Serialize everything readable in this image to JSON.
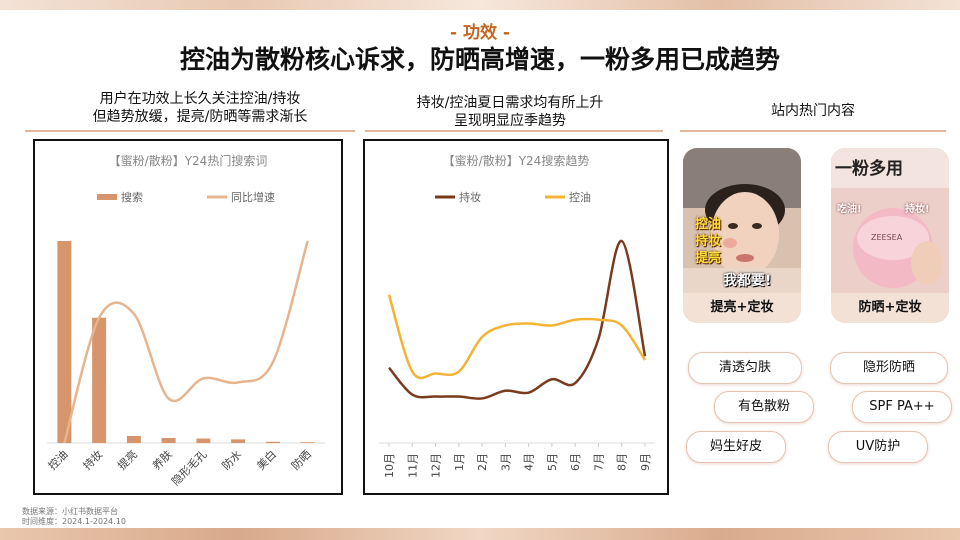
{
  "section_tag": "- 功效 -",
  "headline": "控油为散粉核心诉求，防晒高增速，一粉多用已成趋势",
  "left": {
    "title_lines": [
      "用户在功效上长久关注控油/持妆",
      "但趋势放缓，提亮/防晒等需求渐长"
    ]
  },
  "middle": {
    "title_lines": [
      "持妆/控油夏日需求均有所上升",
      "呈现明显应季趋势"
    ]
  },
  "right": {
    "title": "站内热门内容",
    "cards": [
      {
        "overlay": [
          "控油",
          "持妆",
          "提亮"
        ],
        "banner": "我都要!",
        "caption": "提亮+定妆"
      },
      {
        "overlay_top": "一粉多用",
        "tag1": "吃油!",
        "tag2": "持妆!",
        "brand": "ZEESEA",
        "caption": "防晒+定妆"
      }
    ],
    "pills": [
      "清透匀肤",
      "隐形防晒",
      "有色散粉",
      "SPF PA++",
      "妈生好皮",
      "UV防护"
    ]
  },
  "source": [
    "数据来源：小红书数据平台",
    "时间维度：2024.1-2024.10"
  ],
  "colors": {
    "bar": "#d6956a",
    "growth": "#e6b58f",
    "chizhuang": "#7a3a1e",
    "kongyou": "#f5b335",
    "accent": "#c6641f"
  },
  "chart_data": [
    {
      "type": "bar",
      "title": "【蜜粉/散粉】Y24热门搜索词",
      "categories": [
        "控油",
        "持妆",
        "提亮",
        "养肤",
        "隐形毛孔",
        "防水",
        "美白",
        "防晒"
      ],
      "series": [
        {
          "name": "搜索",
          "kind": "bar",
          "values": [
            100,
            62,
            3.5,
            2.5,
            2.2,
            1.8,
            0.6,
            0.4
          ]
        },
        {
          "name": "同比增速",
          "kind": "line",
          "values": [
            0,
            62,
            64,
            22,
            32,
            30,
            40,
            100
          ]
        }
      ],
      "ylim": [
        0,
        100
      ],
      "legend": "top-left",
      "grid": false
    },
    {
      "type": "line",
      "title": "【蜜粉/散粉】Y24搜索趋势",
      "categories": [
        "10月",
        "11月",
        "12月",
        "1月",
        "2月",
        "3月",
        "4月",
        "5月",
        "6月",
        "7月",
        "8月",
        "9月"
      ],
      "series": [
        {
          "name": "持妆",
          "values": [
            34,
            20,
            19,
            19,
            18,
            22,
            21,
            28,
            26,
            49,
            100,
            40
          ]
        },
        {
          "name": "控油",
          "values": [
            72,
            32,
            31,
            32,
            50,
            56,
            57,
            56,
            59,
            59,
            56,
            38
          ]
        }
      ],
      "ylim": [
        0,
        100
      ],
      "legend": "top",
      "grid": false
    }
  ]
}
